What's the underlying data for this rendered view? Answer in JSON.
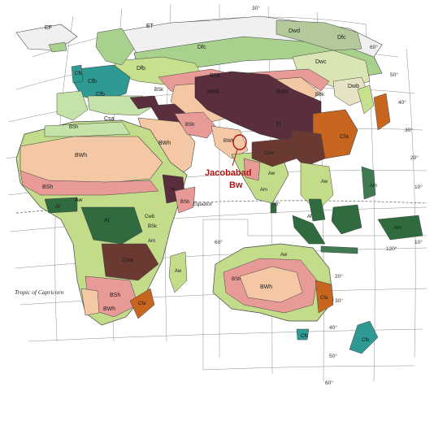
{
  "highlight": {
    "city": "Jacobabad",
    "climate": "Bw",
    "color": "#b01414"
  },
  "reference_lines": {
    "equator": "Equator",
    "tropic": "Tropic of Capricorn"
  },
  "latitude_ticks": [
    "30°",
    "60°",
    "50°",
    "40°",
    "30°",
    "20°",
    "10°",
    "10°",
    "20°",
    "30°",
    "40°",
    "50°",
    "60°"
  ],
  "longitude_ticks": [
    "60°",
    "60°",
    "120°"
  ],
  "climate_labels": [
    "EF",
    "ET",
    "Dwd",
    "Dfc",
    "Dfc",
    "Dfb",
    "Dwc",
    "Cfb",
    "BSk",
    "Dwb",
    "Cfb",
    "BWk",
    "BSk",
    "Csa",
    "BSh",
    "BWh",
    "BWk",
    "BSk",
    "H",
    "Cfa",
    "BWh",
    "BSh",
    "Cwa",
    "Aw",
    "Am",
    "BWh",
    "BSh",
    "Aw",
    "Af",
    "H",
    "Cwb",
    "Af",
    "BSk",
    "Am",
    "BSh",
    "Cwa",
    "BSh",
    "BWh",
    "Cfa",
    "Aw",
    "BWh",
    "BSh",
    "Cfb",
    "Aw",
    "Af",
    "Am",
    "Aw",
    "Cfb",
    "Cfa",
    "Cfb",
    "Am"
  ],
  "colors": {
    "ocean": "#ffffff",
    "grid": "#8c8c8c",
    "tundra_ice": "#f0f0f0",
    "subarctic_d": "#a9d18e",
    "humid_d": "#c6e08d",
    "marine_cfb": "#2f9a93",
    "mediterranean": "#c5e3a8",
    "steppe_bs": "#e89a96",
    "desert_bw": "#f4c7a5",
    "highland_h": "#5a2e3c",
    "humid_subtropical": "#c8651e",
    "winter_dry_cw": "#6a3a32",
    "savanna_aw": "#c3dc8a",
    "rainforest_af": "#2f6b3e",
    "monsoon_am": "#3f7a52"
  }
}
